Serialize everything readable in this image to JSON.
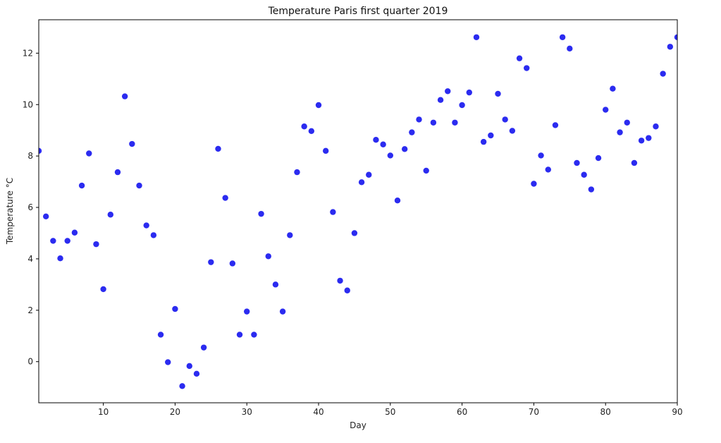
{
  "chart_data": {
    "type": "scatter",
    "title": "Temperature Paris first quarter 2019",
    "xlabel": "Day",
    "ylabel": "Temperature $^\\circ$C",
    "ylabel_display": "Temperature °C",
    "xlim": [
      1,
      90
    ],
    "ylim": [
      -1.6,
      13.3
    ],
    "xticks": [
      10,
      20,
      30,
      40,
      50,
      60,
      70,
      80,
      90
    ],
    "yticks": [
      0,
      2,
      4,
      6,
      8,
      10,
      12
    ],
    "grid": false,
    "marker_color": "#2b2bf0",
    "x": [
      1,
      2,
      3,
      4,
      5,
      6,
      7,
      8,
      9,
      10,
      11,
      12,
      13,
      14,
      15,
      16,
      17,
      18,
      19,
      20,
      21,
      22,
      23,
      24,
      25,
      26,
      27,
      28,
      29,
      30,
      31,
      32,
      33,
      34,
      35,
      36,
      37,
      38,
      39,
      40,
      41,
      42,
      43,
      44,
      45,
      46,
      47,
      48,
      49,
      50,
      51,
      52,
      53,
      54,
      55,
      56,
      57,
      58,
      59,
      60,
      61,
      62,
      63,
      64,
      65,
      66,
      67,
      68,
      69,
      70,
      71,
      72,
      73,
      74,
      75,
      76,
      77,
      78,
      79,
      80,
      81,
      82,
      83,
      84,
      85,
      86,
      87,
      88,
      89,
      90
    ],
    "y": [
      8.2,
      5.65,
      4.7,
      4.02,
      4.7,
      5.02,
      6.85,
      8.1,
      4.57,
      2.82,
      5.72,
      7.37,
      10.32,
      8.47,
      6.85,
      5.3,
      4.92,
      1.05,
      -0.02,
      2.05,
      -0.95,
      -0.17,
      -0.47,
      0.55,
      3.87,
      8.28,
      6.37,
      3.82,
      1.05,
      1.95,
      1.05,
      5.75,
      4.1,
      3.0,
      1.95,
      4.92,
      7.37,
      9.15,
      8.97,
      9.98,
      8.2,
      5.82,
      3.15,
      2.77,
      5.0,
      6.98,
      7.27,
      8.63,
      8.45,
      8.02,
      6.27,
      8.27,
      8.92,
      9.42,
      7.43,
      9.3,
      10.18,
      10.52,
      9.3,
      9.98,
      10.47,
      12.62,
      8.55,
      8.8,
      10.42,
      9.42,
      8.98,
      11.8,
      11.42,
      6.92,
      8.02,
      7.47,
      9.2,
      12.62,
      12.18,
      7.73,
      7.27,
      6.7,
      7.92,
      9.8,
      10.62,
      8.92,
      9.3,
      7.73,
      8.6,
      8.7,
      9.15,
      11.2,
      12.25,
      12.62
    ]
  }
}
